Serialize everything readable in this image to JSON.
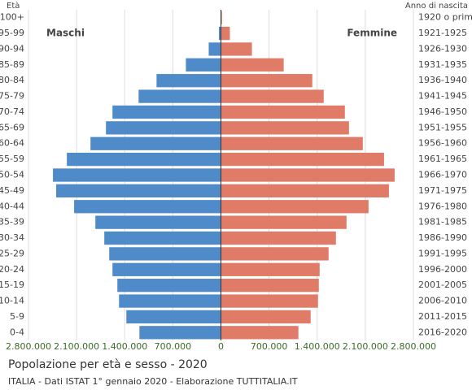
{
  "chart_data": {
    "type": "pyramid",
    "title": "Popolazione per età e sesso - 2020",
    "subtitle": "ITALIA - Dati ISTAT 1° gennaio 2020 - Elaborazione TUTTITALIA.IT",
    "y_label": "Età",
    "y2_label": "Anno di nascita",
    "categories": [
      "100+",
      "95-99",
      "90-94",
      "85-89",
      "80-84",
      "75-79",
      "70-74",
      "65-69",
      "60-64",
      "55-59",
      "50-54",
      "45-49",
      "40-44",
      "35-39",
      "30-34",
      "25-29",
      "20-24",
      "15-19",
      "10-14",
      "5-9",
      "0-4"
    ],
    "birth_years": [
      "1920 o prima",
      "1921-1925",
      "1926-1930",
      "1931-1935",
      "1936-1940",
      "1941-1945",
      "1946-1950",
      "1951-1955",
      "1956-1960",
      "1961-1965",
      "1966-1970",
      "1971-1975",
      "1976-1980",
      "1981-1985",
      "1986-1990",
      "1991-1995",
      "1996-2000",
      "2001-2005",
      "2006-2010",
      "2011-2015",
      "2016-2020"
    ],
    "series": [
      {
        "name": "Maschi",
        "color": "#4f8bc9",
        "side": "left",
        "values": [
          4000,
          30000,
          178000,
          510000,
          937000,
          1198000,
          1578000,
          1673000,
          1898000,
          2242000,
          2444000,
          2397000,
          2136000,
          1827000,
          1697000,
          1625000,
          1578000,
          1507000,
          1483000,
          1376000,
          1186000
        ]
      },
      {
        "name": "Femmine",
        "color": "#e07b67",
        "side": "right",
        "values": [
          15000,
          130000,
          451000,
          913000,
          1329000,
          1495000,
          1803000,
          1863000,
          2064000,
          2373000,
          2527000,
          2444000,
          2147000,
          1827000,
          1673000,
          1566000,
          1436000,
          1424000,
          1412000,
          1305000,
          1127000
        ]
      }
    ],
    "xlim": [
      -2800000,
      2800000
    ],
    "xticks": [
      {
        "value": -2800000,
        "label": "2.800.000"
      },
      {
        "value": -2100000,
        "label": "2.100.000"
      },
      {
        "value": -1400000,
        "label": "1.400.000"
      },
      {
        "value": -700000,
        "label": "700.000"
      },
      0,
      {
        "value": 700000,
        "label": "700.000"
      },
      {
        "value": 1400000,
        "label": "1.400.000"
      },
      {
        "value": 2100000,
        "label": "2.100.000"
      },
      {
        "value": 2800000,
        "label": "2.800.000"
      }
    ],
    "grid": true
  }
}
